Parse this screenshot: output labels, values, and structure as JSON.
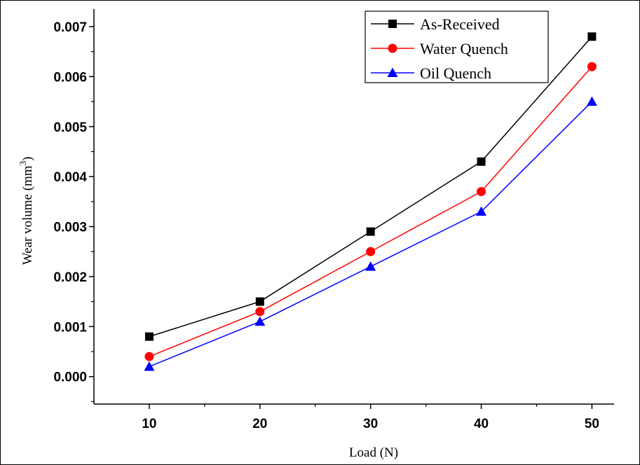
{
  "chart_data": {
    "type": "line",
    "x": [
      10,
      20,
      30,
      40,
      50
    ],
    "xlabel": "Load (N)",
    "ylabel_main": "Wear volume (mm",
    "ylabel_sup": "3",
    "ylabel_close": ")",
    "xlim": [
      5,
      52
    ],
    "ylim": [
      -0.00055,
      0.00735
    ],
    "xticks": [
      10,
      20,
      30,
      40,
      50
    ],
    "xtick_labels": [
      "10",
      "20",
      "30",
      "40",
      "50"
    ],
    "yticks": [
      0.0,
      0.001,
      0.002,
      0.003,
      0.004,
      0.005,
      0.006,
      0.007
    ],
    "ytick_labels": [
      "0.000",
      "0.001",
      "0.002",
      "0.003",
      "0.004",
      "0.005",
      "0.006",
      "0.007"
    ],
    "grid": false,
    "legend_position": "top-right",
    "series": [
      {
        "name": "As-Received",
        "color": "#000000",
        "marker": "square",
        "values": [
          0.0008,
          0.0015,
          0.0029,
          0.0043,
          0.0068
        ]
      },
      {
        "name": "Water Quench",
        "color": "#ff0000",
        "marker": "circle",
        "values": [
          0.0004,
          0.0013,
          0.0025,
          0.0037,
          0.0062
        ]
      },
      {
        "name": "Oil Quench",
        "color": "#0000ff",
        "marker": "triangle",
        "values": [
          0.0002,
          0.0011,
          0.0022,
          0.0033,
          0.0055
        ]
      }
    ]
  }
}
